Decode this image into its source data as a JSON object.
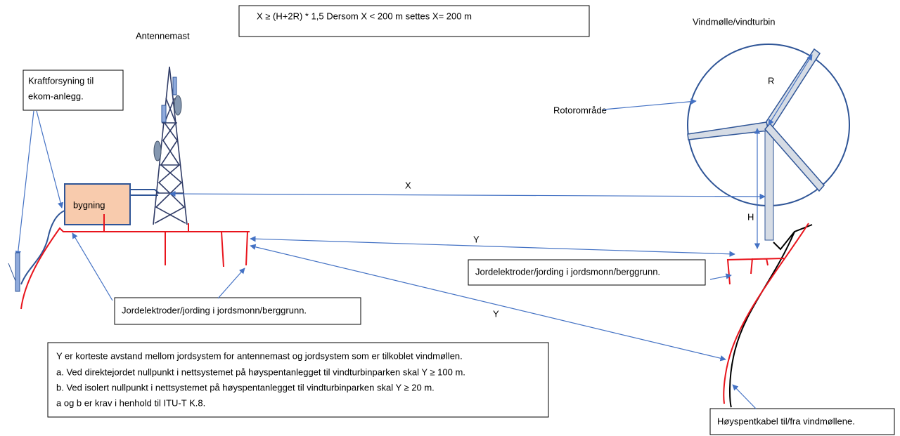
{
  "formula": "X ≥ (H+2R) * 1,5   Dersom X < 200 m settes X= 200 m",
  "mast_label": "Antennemast",
  "turbine_label": "Vindmølle/vindturbin",
  "power_supply": {
    "lines": [
      "Kraftforsyning til",
      "ekom-anlegg."
    ]
  },
  "building": "bygning",
  "rotor_label": "Rotorområde",
  "r_label": "R",
  "x_label": "X",
  "h_label": "H",
  "y_labels": [
    "Y",
    "Y"
  ],
  "ground_labels": [
    "Jordelektroder/jording i jordsmonn/berggrunn.",
    "Jordelektroder/jording i jordsmonn/berggrunn."
  ],
  "note": [
    "Y er korteste avstand mellom jordsystem for antennemast og jordsystem som er tilkoblet vindmøllen.",
    "a. Ved direktejordet nullpunkt i nettsystemet på høyspentanlegget til vindturbinparken skal Y ≥ 100 m.",
    "b. Ved isolert nullpunkt i nettsystemet på høyspentanlegget til vindturbinparken skal Y ≥ 20 m.",
    "a og b er krav i henhold til ITU-T K.8."
  ],
  "hv_label": "Høyspentkabel til/fra vindmøllene."
}
